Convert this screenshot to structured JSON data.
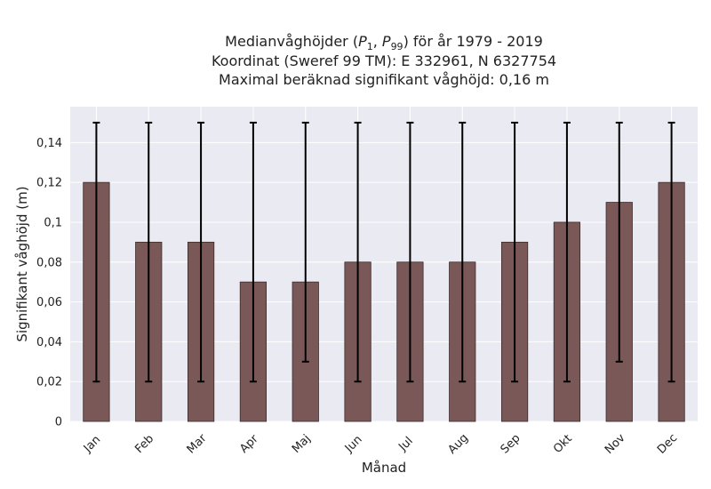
{
  "chart_data": {
    "type": "bar",
    "title_lines": [
      "Medianvåghöjder (",
      "Koordinat (Sweref 99 TM): E 332961, N 6327754",
      "Maximal beräknad signifikant våghöjd: 0,16 m"
    ],
    "title_math": {
      "p1": "P",
      "p1_sub": "1",
      "comma": ", ",
      "p99": "P",
      "p99_sub": "99",
      "suffix": ") för år 1979 - 2019"
    },
    "xlabel": "Månad",
    "ylabel": "Signifikant våghöjd (m)",
    "categories": [
      "Jan",
      "Feb",
      "Mar",
      "Apr",
      "Maj",
      "Jun",
      "Jul",
      "Aug",
      "Sep",
      "Okt",
      "Nov",
      "Dec"
    ],
    "values": [
      0.12,
      0.09,
      0.09,
      0.07,
      0.07,
      0.08,
      0.08,
      0.08,
      0.09,
      0.1,
      0.11,
      0.12
    ],
    "lower": [
      0.02,
      0.02,
      0.02,
      0.02,
      0.03,
      0.02,
      0.02,
      0.02,
      0.02,
      0.02,
      0.03,
      0.02
    ],
    "upper": [
      0.15,
      0.15,
      0.15,
      0.15,
      0.15,
      0.15,
      0.15,
      0.15,
      0.15,
      0.15,
      0.15,
      0.15
    ],
    "ylim": [
      0,
      0.158
    ],
    "yticks": [
      0,
      0.02,
      0.04,
      0.06,
      0.08,
      0.1,
      0.12,
      0.14
    ],
    "ytick_labels": [
      "0",
      "0,02",
      "0,04",
      "0,06",
      "0,08",
      "0,1",
      "0,12",
      "0,14"
    ],
    "grid": true,
    "colors": {
      "bar": "#7a5858",
      "bar_edge": "#3a2a2a",
      "plot_bg": "#eaeaf2",
      "grid": "#ffffff",
      "errorbar": "#000000"
    }
  }
}
